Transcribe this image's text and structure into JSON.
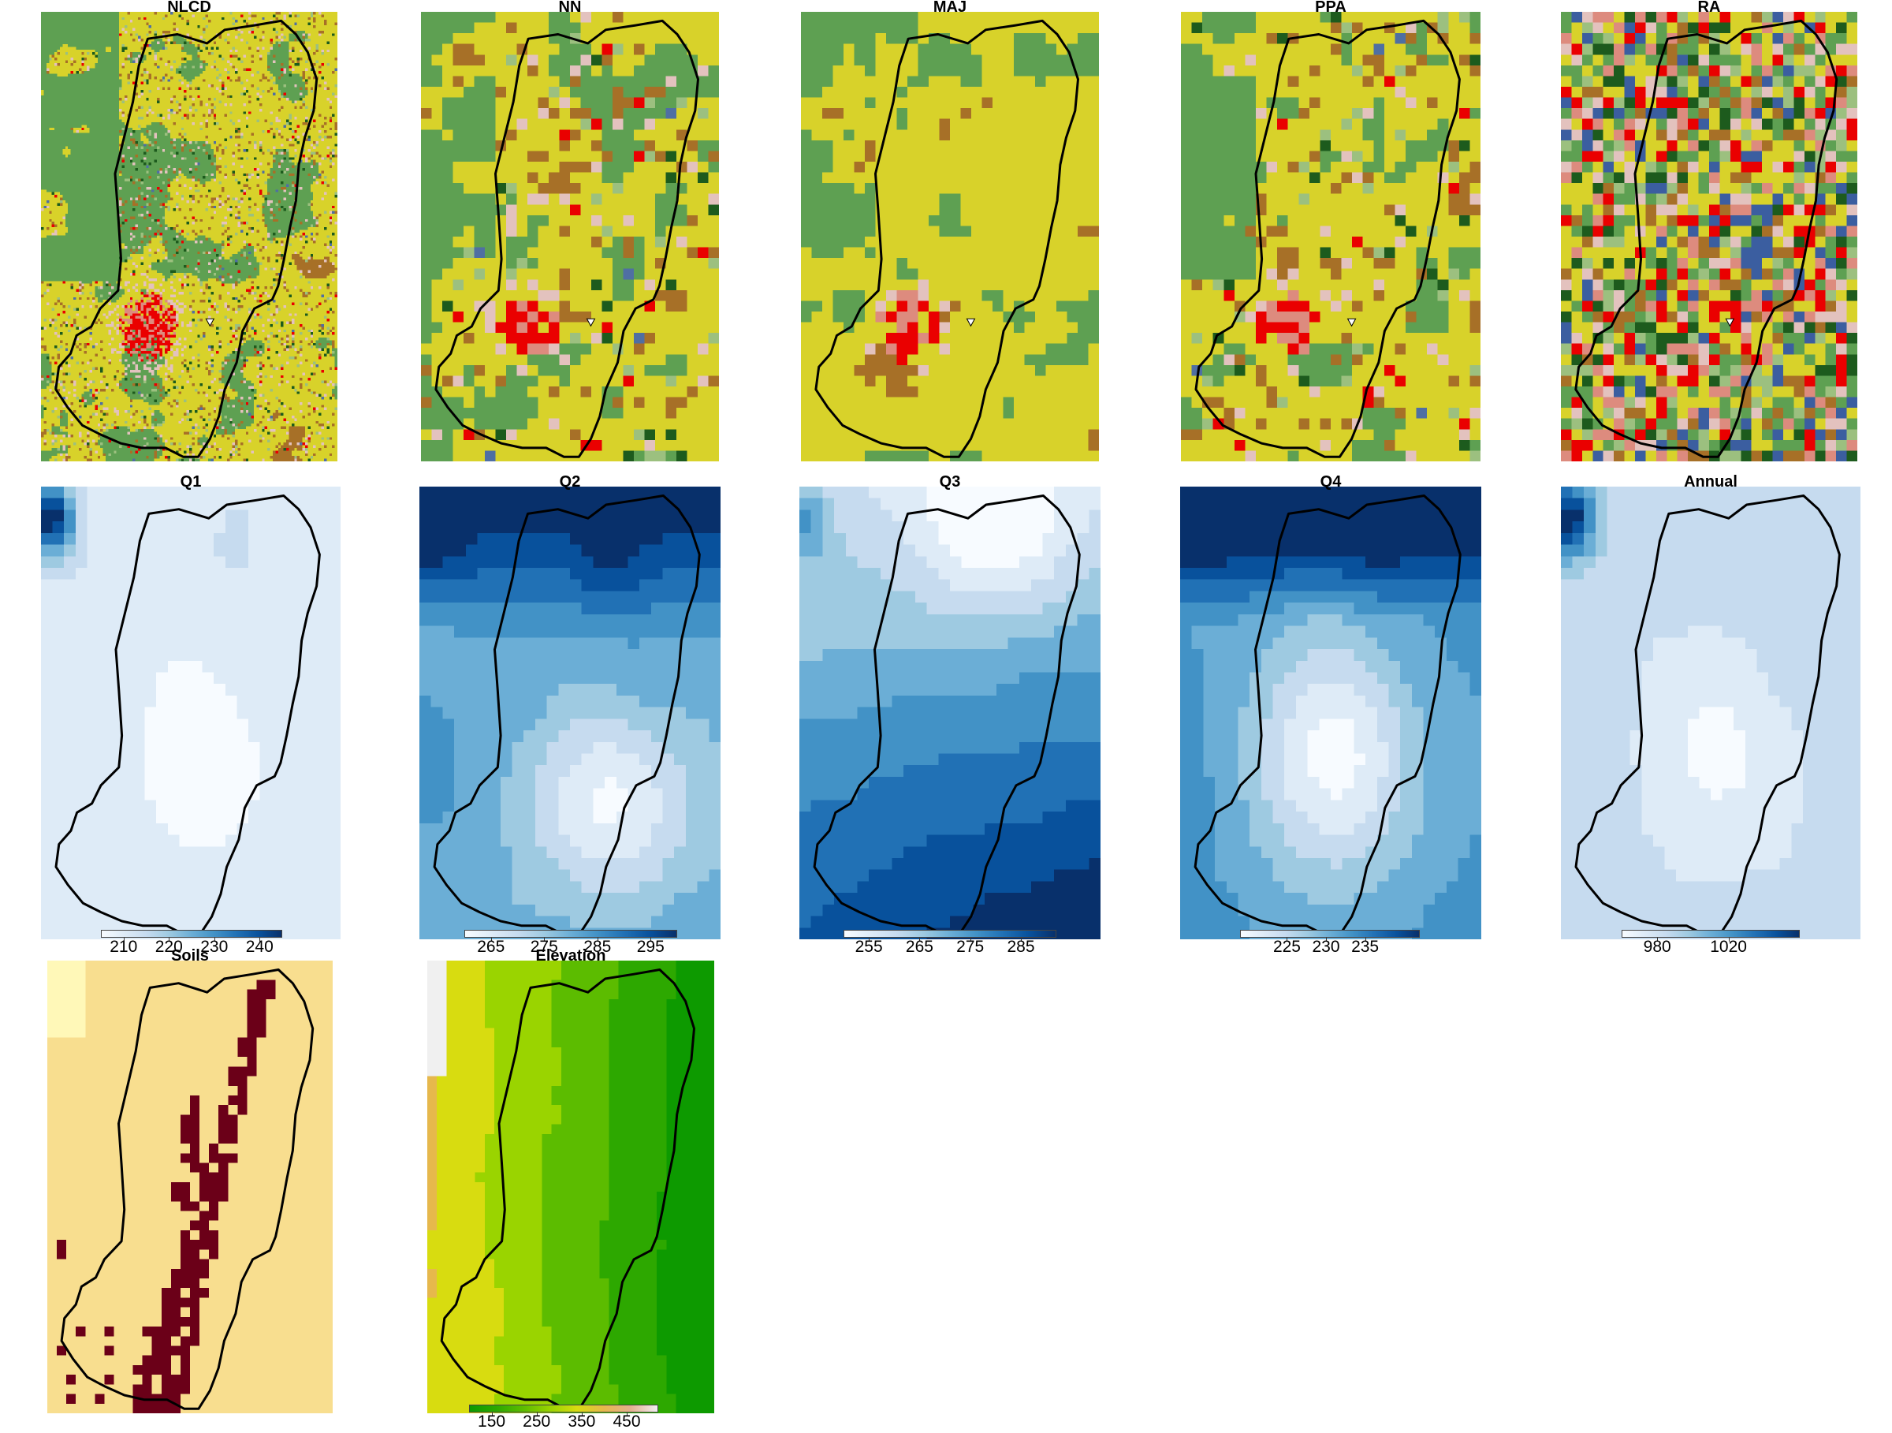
{
  "figure": {
    "panels": [
      {
        "id": "nlcd",
        "title": "NLCD",
        "kind": "landcover",
        "res": 110,
        "seed": 11
      },
      {
        "id": "nn",
        "title": "NN",
        "kind": "landcover",
        "res": 28,
        "seed": 23
      },
      {
        "id": "maj",
        "title": "MAJ",
        "kind": "landcover",
        "res": 28,
        "seed": 37,
        "smooth": true
      },
      {
        "id": "ppa",
        "title": "PPA",
        "kind": "landcover",
        "res": 28,
        "seed": 53
      },
      {
        "id": "ra",
        "title": "RA",
        "kind": "landcover",
        "res": 28,
        "seed": 71,
        "random": true
      },
      {
        "id": "q1",
        "title": "Q1",
        "kind": "precip",
        "variant": "q1",
        "legend": {
          "ticks": [
            "210",
            "220",
            "230",
            "240"
          ],
          "values": [
            210,
            220,
            230,
            240
          ],
          "min": 205,
          "max": 245
        }
      },
      {
        "id": "q2",
        "title": "Q2",
        "kind": "precip",
        "variant": "q2",
        "legend": {
          "ticks": [
            "265",
            "275",
            "285",
            "295"
          ],
          "values": [
            265,
            275,
            285,
            295
          ],
          "min": 260,
          "max": 300
        }
      },
      {
        "id": "q3",
        "title": "Q3",
        "kind": "precip",
        "variant": "q3",
        "legend": {
          "ticks": [
            "255",
            "265",
            "275",
            "285"
          ],
          "values": [
            255,
            265,
            275,
            285
          ],
          "min": 250,
          "max": 292
        }
      },
      {
        "id": "q4",
        "title": "Q4",
        "kind": "precip",
        "variant": "q4",
        "legend": {
          "ticks": [
            "225",
            "230",
            "235"
          ],
          "values": [
            225,
            230,
            235
          ],
          "min": 219,
          "max": 242
        }
      },
      {
        "id": "annual",
        "title": "Annual",
        "kind": "precip",
        "variant": "annual",
        "legend": {
          "ticks": [
            "980",
            "1020"
          ],
          "values": [
            980,
            1020
          ],
          "min": 960,
          "max": 1060
        }
      },
      {
        "id": "soils",
        "title": "Soils",
        "kind": "soils"
      },
      {
        "id": "elev",
        "title": "Elevation",
        "kind": "elevation",
        "legend": {
          "ticks": [
            "150",
            "250",
            "350",
            "450"
          ],
          "values": [
            150,
            250,
            350,
            450
          ],
          "min": 100,
          "max": 520
        }
      }
    ],
    "colors": {
      "landcover": [
        "#d8d22a",
        "#d8d22a",
        "#d8d22a",
        "#5ea052",
        "#5ea052",
        "#a77027",
        "#e3c2be",
        "#1d5b1d",
        "#9cc07f",
        "#dd8b7e",
        "#ea0000",
        "#3b5ea0"
      ],
      "water": "#4f6fa3",
      "urban_core": "#ea0000",
      "urban_mid": "#dd8b7e",
      "boundary": "#000000",
      "outlet": "#ffffff",
      "blues": [
        "#f7fbff",
        "#deebf7",
        "#c6dbef",
        "#9ecae1",
        "#6baed6",
        "#4292c6",
        "#2171b5",
        "#08519c",
        "#08306b"
      ],
      "soils": {
        "base": "#f8de8f",
        "light": "#fff8b8",
        "dark": "#6b0018"
      },
      "elevation": [
        "#0d9a00",
        "#2da800",
        "#5cbc00",
        "#9ad400",
        "#d8dc10",
        "#e6b84c",
        "#e4b08f",
        "#f0f0f0"
      ]
    }
  }
}
